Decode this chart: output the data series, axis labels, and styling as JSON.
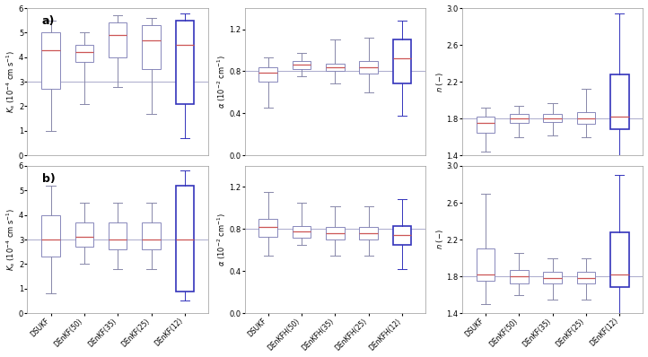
{
  "categories_left": [
    "DSUKF",
    "DEnKF(50)",
    "DEnKF(35)",
    "DEnKF(25)",
    "DEnKF(12)"
  ],
  "categories_mid": [
    "DSUKF",
    "DEnKFH(50)",
    "DEnKFH(35)",
    "DEnKFH(25)",
    "DEnKFH(12)"
  ],
  "categories_right": [
    "DSUKF",
    "DEnKF(50)",
    "DEnKF(35)",
    "DEnKF(25)",
    "DEnKF(12)"
  ],
  "fig_width": 7.22,
  "fig_height": 3.98,
  "dpi": 100,
  "box_color": "#8888bb",
  "box_color_last": "#3333bb",
  "box_face": "#ffffff",
  "median_color": "#cc5555",
  "whisker_color": "#8888aa",
  "cap_color": "#8888aa",
  "ref_line_color": "#aaaacc",
  "Ks_a": {
    "ylabel": "$K_s$ ($10^{-4}$ cm s$^{-1}$)",
    "ylim": [
      0,
      6
    ],
    "yticks": [
      0,
      1,
      2,
      3,
      4,
      5,
      6
    ],
    "ref_line": 3.0,
    "boxes": [
      {
        "whislo": 1.0,
        "q1": 2.7,
        "med": 4.3,
        "q3": 5.0,
        "whishi": 5.5
      },
      {
        "whislo": 2.1,
        "q1": 3.8,
        "med": 4.2,
        "q3": 4.5,
        "whishi": 5.0
      },
      {
        "whislo": 2.8,
        "q1": 4.0,
        "med": 4.9,
        "q3": 5.4,
        "whishi": 5.7
      },
      {
        "whislo": 1.7,
        "q1": 3.5,
        "med": 4.7,
        "q3": 5.3,
        "whishi": 5.6
      },
      {
        "whislo": 0.7,
        "q1": 2.1,
        "med": 4.5,
        "q3": 5.5,
        "whishi": 5.8
      }
    ]
  },
  "alpha_a": {
    "ylabel": "$\\alpha$ ($10^{-2}$ cm$^{-1}$)",
    "ylim": [
      0,
      1.4
    ],
    "yticks": [
      0,
      0.4,
      0.8,
      1.2
    ],
    "ref_line": 0.8,
    "boxes": [
      {
        "whislo": 0.45,
        "q1": 0.7,
        "med": 0.79,
        "q3": 0.84,
        "whishi": 0.93
      },
      {
        "whislo": 0.75,
        "q1": 0.82,
        "med": 0.86,
        "q3": 0.9,
        "whishi": 0.97
      },
      {
        "whislo": 0.68,
        "q1": 0.8,
        "med": 0.84,
        "q3": 0.87,
        "whishi": 1.1
      },
      {
        "whislo": 0.6,
        "q1": 0.78,
        "med": 0.84,
        "q3": 0.9,
        "whishi": 1.12
      },
      {
        "whislo": 0.38,
        "q1": 0.68,
        "med": 0.92,
        "q3": 1.1,
        "whishi": 1.28
      }
    ]
  },
  "n_a": {
    "ylabel": "$n$ ($-$)",
    "ylim": [
      1.4,
      3.0
    ],
    "yticks": [
      1.4,
      1.8,
      2.2,
      2.6,
      3.0
    ],
    "ref_line": 1.8,
    "boxes": [
      {
        "whislo": 1.44,
        "q1": 1.65,
        "med": 1.75,
        "q3": 1.82,
        "whishi": 1.92
      },
      {
        "whislo": 1.6,
        "q1": 1.75,
        "med": 1.8,
        "q3": 1.85,
        "whishi": 1.94
      },
      {
        "whislo": 1.62,
        "q1": 1.76,
        "med": 1.8,
        "q3": 1.85,
        "whishi": 1.97
      },
      {
        "whislo": 1.6,
        "q1": 1.74,
        "med": 1.8,
        "q3": 1.87,
        "whishi": 2.12
      },
      {
        "whislo": 1.15,
        "q1": 1.68,
        "med": 1.82,
        "q3": 2.28,
        "whishi": 2.94
      }
    ]
  },
  "Ks_b": {
    "ylabel": "$K_s$ ($10^{-4}$ cm s$^{-1}$)",
    "ylim": [
      0,
      6
    ],
    "yticks": [
      0,
      1,
      2,
      3,
      4,
      5,
      6
    ],
    "ref_line": 3.0,
    "boxes": [
      {
        "whislo": 0.8,
        "q1": 2.3,
        "med": 3.0,
        "q3": 4.0,
        "whishi": 5.2
      },
      {
        "whislo": 2.0,
        "q1": 2.7,
        "med": 3.1,
        "q3": 3.7,
        "whishi": 4.5
      },
      {
        "whislo": 1.8,
        "q1": 2.6,
        "med": 3.0,
        "q3": 3.7,
        "whishi": 4.5
      },
      {
        "whislo": 1.8,
        "q1": 2.6,
        "med": 3.0,
        "q3": 3.7,
        "whishi": 4.5
      },
      {
        "whislo": 0.5,
        "q1": 0.9,
        "med": 3.0,
        "q3": 5.2,
        "whishi": 5.8
      }
    ]
  },
  "alpha_b": {
    "ylabel": "$\\alpha$ ($10^{-2}$ cm$^{-1}$)",
    "ylim": [
      0,
      1.4
    ],
    "yticks": [
      0,
      0.4,
      0.8,
      1.2
    ],
    "ref_line": 0.8,
    "boxes": [
      {
        "whislo": 0.55,
        "q1": 0.73,
        "med": 0.82,
        "q3": 0.9,
        "whishi": 1.15
      },
      {
        "whislo": 0.65,
        "q1": 0.72,
        "med": 0.78,
        "q3": 0.83,
        "whishi": 1.05
      },
      {
        "whislo": 0.55,
        "q1": 0.7,
        "med": 0.76,
        "q3": 0.82,
        "whishi": 1.02
      },
      {
        "whislo": 0.55,
        "q1": 0.7,
        "med": 0.76,
        "q3": 0.82,
        "whishi": 1.02
      },
      {
        "whislo": 0.42,
        "q1": 0.65,
        "med": 0.74,
        "q3": 0.83,
        "whishi": 1.08
      }
    ]
  },
  "n_b": {
    "ylabel": "$n$ ($-$)",
    "ylim": [
      1.4,
      3.0
    ],
    "yticks": [
      1.4,
      1.8,
      2.2,
      2.6,
      3.0
    ],
    "ref_line": 1.8,
    "boxes": [
      {
        "whislo": 1.5,
        "q1": 1.75,
        "med": 1.82,
        "q3": 2.1,
        "whishi": 2.7
      },
      {
        "whislo": 1.6,
        "q1": 1.72,
        "med": 1.8,
        "q3": 1.87,
        "whishi": 2.05
      },
      {
        "whislo": 1.55,
        "q1": 1.72,
        "med": 1.78,
        "q3": 1.85,
        "whishi": 2.0
      },
      {
        "whislo": 1.55,
        "q1": 1.72,
        "med": 1.78,
        "q3": 1.85,
        "whishi": 2.0
      },
      {
        "whislo": 1.38,
        "q1": 1.68,
        "med": 1.82,
        "q3": 2.28,
        "whishi": 2.9
      }
    ]
  }
}
